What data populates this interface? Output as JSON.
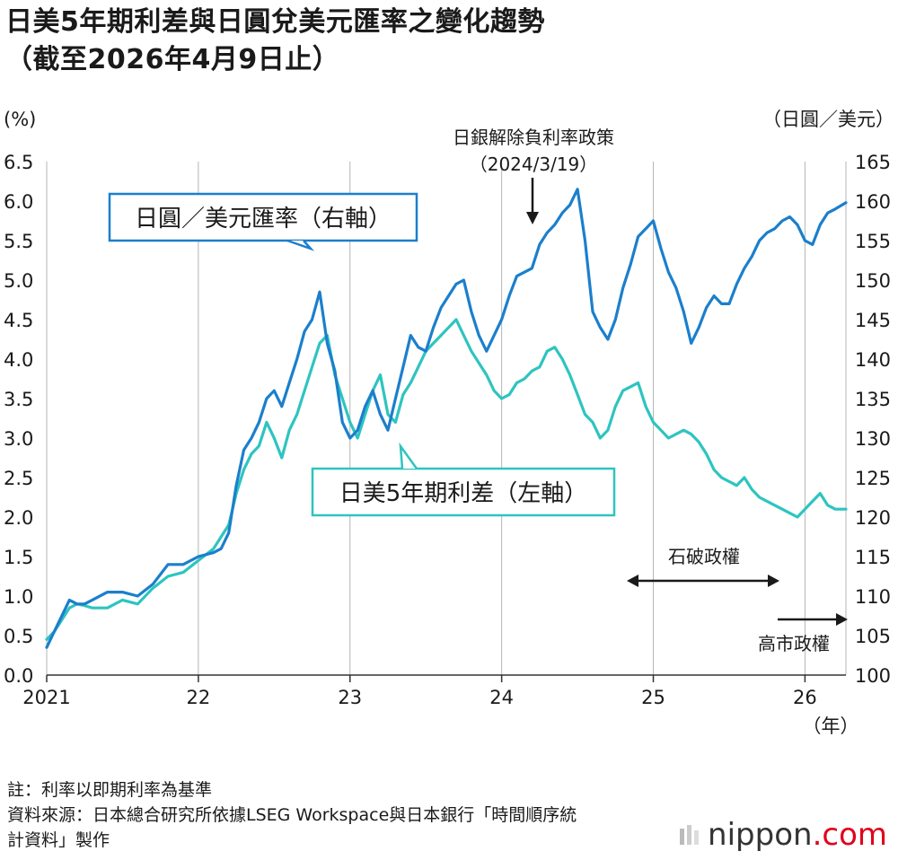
{
  "title_line1": "日美5年期利差與日圓兌美元匯率之變化趨勢",
  "title_line2": "（截至2026年4月9日止）",
  "chart_data": {
    "type": "line",
    "x_unit": "year",
    "xlim": [
      2021.0,
      2026.27
    ],
    "x_tick_values": [
      2021,
      2022,
      2023,
      2024,
      2025,
      2026
    ],
    "x_tick_labels": [
      "2021",
      "22",
      "23",
      "24",
      "25",
      "26"
    ],
    "x_unit_label": "（年）",
    "left_axis": {
      "unit_label": "(%)",
      "ylim": [
        0,
        6.5
      ],
      "ticks": [
        "0.0",
        "0.5",
        "1.0",
        "1.5",
        "2.0",
        "2.5",
        "3.0",
        "3.5",
        "4.0",
        "4.5",
        "5.0",
        "5.5",
        "6.0",
        "6.5"
      ]
    },
    "right_axis": {
      "unit_label": "（日圓／美元）",
      "ylim": [
        100,
        165
      ],
      "ticks": [
        "100",
        "105",
        "110",
        "115",
        "120",
        "125",
        "130",
        "135",
        "140",
        "145",
        "150",
        "155",
        "160",
        "165"
      ]
    },
    "grid": "vertical",
    "series": [
      {
        "name": "日圓／美元匯率（右軸）",
        "axis": "right",
        "color": "#1b7fcc",
        "x": [
          2021.0,
          2021.05,
          2021.1,
          2021.15,
          2021.2,
          2021.25,
          2021.3,
          2021.4,
          2021.5,
          2021.6,
          2021.7,
          2021.8,
          2021.9,
          2022.0,
          2022.1,
          2022.15,
          2022.2,
          2022.25,
          2022.3,
          2022.35,
          2022.4,
          2022.45,
          2022.5,
          2022.55,
          2022.6,
          2022.65,
          2022.7,
          2022.75,
          2022.8,
          2022.85,
          2022.9,
          2022.95,
          2023.0,
          2023.05,
          2023.1,
          2023.15,
          2023.2,
          2023.25,
          2023.3,
          2023.35,
          2023.4,
          2023.45,
          2023.5,
          2023.55,
          2023.6,
          2023.65,
          2023.7,
          2023.75,
          2023.8,
          2023.85,
          2023.9,
          2023.95,
          2024.0,
          2024.05,
          2024.1,
          2024.15,
          2024.2,
          2024.25,
          2024.3,
          2024.35,
          2024.4,
          2024.45,
          2024.5,
          2024.55,
          2024.6,
          2024.65,
          2024.7,
          2024.75,
          2024.8,
          2024.85,
          2024.9,
          2024.95,
          2025.0,
          2025.05,
          2025.1,
          2025.15,
          2025.2,
          2025.25,
          2025.3,
          2025.35,
          2025.4,
          2025.45,
          2025.5,
          2025.55,
          2025.6,
          2025.65,
          2025.7,
          2025.75,
          2025.8,
          2025.85,
          2025.9,
          2025.95,
          2026.0,
          2026.05,
          2026.1,
          2026.15,
          2026.2,
          2026.27
        ],
        "values": [
          103.5,
          105.5,
          107.5,
          109.5,
          109.0,
          109.0,
          109.5,
          110.5,
          110.5,
          110.0,
          111.5,
          114.0,
          114.0,
          115.0,
          115.5,
          116.0,
          118.0,
          124.0,
          128.5,
          130.0,
          132.0,
          135.0,
          136.0,
          134.0,
          137.0,
          140.0,
          143.5,
          145.0,
          148.5,
          142.0,
          138.5,
          132.0,
          130.0,
          131.0,
          134.0,
          136.0,
          133.0,
          131.0,
          135.0,
          139.0,
          143.0,
          141.5,
          141.0,
          144.0,
          146.5,
          148.0,
          149.5,
          150.0,
          146.0,
          143.0,
          141.0,
          143.0,
          145.0,
          148.0,
          150.5,
          151.0,
          151.5,
          154.5,
          156.0,
          157.0,
          158.5,
          159.5,
          161.5,
          155.0,
          146.0,
          144.0,
          142.5,
          145.0,
          149.0,
          152.0,
          155.5,
          156.5,
          157.5,
          154.0,
          151.0,
          149.0,
          146.0,
          142.0,
          144.0,
          146.5,
          148.0,
          147.0,
          147.0,
          149.5,
          151.5,
          153.0,
          155.0,
          156.0,
          156.5,
          157.5,
          158.0,
          157.0,
          155.0,
          154.5,
          157.0,
          158.5,
          159.0,
          159.8
        ]
      },
      {
        "name": "日美5年期利差（左軸）",
        "axis": "left",
        "color": "#2ec4c0",
        "x": [
          2021.0,
          2021.05,
          2021.1,
          2021.15,
          2021.2,
          2021.25,
          2021.3,
          2021.4,
          2021.5,
          2021.6,
          2021.7,
          2021.8,
          2021.9,
          2022.0,
          2022.1,
          2022.15,
          2022.2,
          2022.25,
          2022.3,
          2022.35,
          2022.4,
          2022.45,
          2022.5,
          2022.55,
          2022.6,
          2022.65,
          2022.7,
          2022.75,
          2022.8,
          2022.85,
          2022.9,
          2022.95,
          2023.0,
          2023.05,
          2023.1,
          2023.15,
          2023.2,
          2023.25,
          2023.3,
          2023.35,
          2023.4,
          2023.45,
          2023.5,
          2023.55,
          2023.6,
          2023.65,
          2023.7,
          2023.75,
          2023.8,
          2023.85,
          2023.9,
          2023.95,
          2024.0,
          2024.05,
          2024.1,
          2024.15,
          2024.2,
          2024.25,
          2024.3,
          2024.35,
          2024.4,
          2024.45,
          2024.5,
          2024.55,
          2024.6,
          2024.65,
          2024.7,
          2024.75,
          2024.8,
          2024.85,
          2024.9,
          2024.95,
          2025.0,
          2025.05,
          2025.1,
          2025.15,
          2025.2,
          2025.25,
          2025.3,
          2025.35,
          2025.4,
          2025.45,
          2025.5,
          2025.55,
          2025.6,
          2025.65,
          2025.7,
          2025.75,
          2025.8,
          2025.85,
          2025.9,
          2025.95,
          2026.0,
          2026.05,
          2026.1,
          2026.15,
          2026.2,
          2026.27
        ],
        "values": [
          0.45,
          0.55,
          0.7,
          0.85,
          0.9,
          0.88,
          0.85,
          0.85,
          0.95,
          0.9,
          1.1,
          1.25,
          1.3,
          1.45,
          1.6,
          1.75,
          1.9,
          2.3,
          2.6,
          2.8,
          2.9,
          3.2,
          3.0,
          2.75,
          3.1,
          3.3,
          3.6,
          3.9,
          4.2,
          4.3,
          3.8,
          3.5,
          3.2,
          3.0,
          3.3,
          3.6,
          3.8,
          3.3,
          3.2,
          3.55,
          3.7,
          3.9,
          4.1,
          4.2,
          4.3,
          4.4,
          4.5,
          4.3,
          4.1,
          3.95,
          3.8,
          3.6,
          3.5,
          3.55,
          3.7,
          3.75,
          3.85,
          3.9,
          4.1,
          4.15,
          4.0,
          3.8,
          3.55,
          3.3,
          3.2,
          3.0,
          3.1,
          3.4,
          3.6,
          3.65,
          3.7,
          3.4,
          3.2,
          3.1,
          3.0,
          3.05,
          3.1,
          3.05,
          2.95,
          2.8,
          2.6,
          2.5,
          2.45,
          2.4,
          2.5,
          2.35,
          2.25,
          2.2,
          2.15,
          2.1,
          2.05,
          2.0,
          2.1,
          2.2,
          2.3,
          2.15,
          2.1,
          2.1
        ]
      }
    ],
    "callouts": {
      "fx_label": "日圓／美元匯率（右軸）",
      "spread_label": "日美5年期利差（左軸）",
      "boj_event": "日銀解除負利率政策",
      "boj_date": "（2024/3/19）",
      "ishiba": "石破政權",
      "takaichi": "高市政權"
    }
  },
  "notes": {
    "line1": "註：利率以即期利率為基準",
    "line2": "資料來源：日本總合研究所依據LSEG Workspace與日本銀行「時間順序統",
    "line3": "計資料」製作"
  },
  "logo": {
    "name": "nippon",
    "suffix": ".com"
  }
}
